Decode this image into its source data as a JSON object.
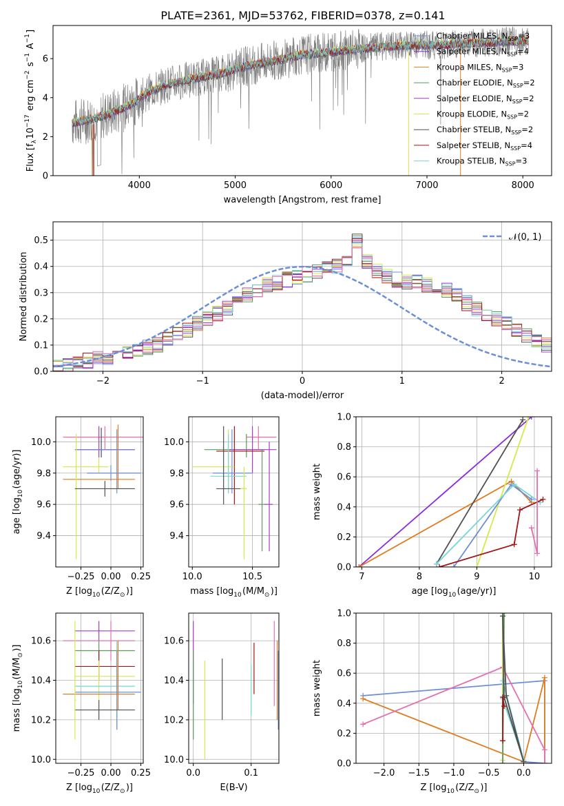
{
  "figure": {
    "title": "PLATE=2361, MJD=53762, FIBERID=0378, z=0.141"
  },
  "colors": {
    "data": "#808080",
    "series": [
      "#6a8fd8",
      "#8a2be2",
      "#e07b1f",
      "#5a9a5a",
      "#a63ac2",
      "#d6e84a",
      "#505050",
      "#a01515",
      "#76d6d6",
      "#e36fb0"
    ]
  },
  "chart_data": [
    {
      "id": "spectrum",
      "type": "line",
      "xlabel": "wavelength [Angstrom, rest frame]",
      "ylabel": "Flux [f$_\\lambda$10$^{-17}$ erg cm$^{-2}$ s$^{-1}$ A$^{-1}$]",
      "xlim": [
        3100,
        8300
      ],
      "ylim": [
        0,
        7.7
      ],
      "xticks": [
        4000,
        5000,
        6000,
        7000,
        8000
      ],
      "yticks": [
        0,
        2,
        4,
        6
      ],
      "grid": false,
      "legend_position": "upper-right",
      "continuum": {
        "x": [
          3300,
          3500,
          3700,
          3900,
          4100,
          4300,
          4500,
          4700,
          4900,
          5100,
          5300,
          5500,
          5700,
          5900,
          6100,
          6300,
          6500,
          6700,
          6900,
          7100,
          7300,
          7500,
          7700,
          7900,
          8050
        ],
        "y": [
          2.7,
          2.9,
          3.2,
          3.6,
          4.3,
          4.7,
          4.9,
          5.1,
          5.3,
          5.6,
          5.8,
          6.0,
          6.2,
          6.3,
          6.4,
          6.5,
          6.6,
          6.65,
          6.7,
          6.7,
          6.75,
          6.8,
          6.85,
          6.9,
          6.9
        ]
      },
      "legend": [
        {
          "label": "Chabrier MILES, N",
          "sub": "SSP",
          "tail": "=3",
          "color": "#6a8fd8"
        },
        {
          "label": "Salpeter MILES, N",
          "sub": "SSP",
          "tail": "=4",
          "color": "#8a2be2"
        },
        {
          "label": "Kroupa MILES, N",
          "sub": "SSP",
          "tail": "=3",
          "color": "#e07b1f"
        },
        {
          "label": "Chabrier ELODIE, N",
          "sub": "SSP",
          "tail": "=2",
          "color": "#5a9a5a"
        },
        {
          "label": "Salpeter ELODIE, N",
          "sub": "SSP",
          "tail": "=2",
          "color": "#a63ac2"
        },
        {
          "label": "Kroupa ELODIE, N",
          "sub": "SSP",
          "tail": "=2",
          "color": "#d6e84a"
        },
        {
          "label": "Chabrier STELIB, N",
          "sub": "SSP",
          "tail": "=2",
          "color": "#505050"
        },
        {
          "label": "Salpeter STELIB, N",
          "sub": "SSP",
          "tail": "=4",
          "color": "#a01515"
        },
        {
          "label": "Kroupa STELIB, N",
          "sub": "SSP",
          "tail": "=3",
          "color": "#76d6d6"
        }
      ]
    },
    {
      "id": "residuals",
      "type": "histogram",
      "xlabel": "(data-model)/error",
      "ylabel": "Normed distribution",
      "xlim": [
        -2.5,
        2.5
      ],
      "ylim": [
        0,
        0.57
      ],
      "xticks": [
        -2,
        -1,
        0,
        1,
        2
      ],
      "yticks": [
        0.0,
        0.1,
        0.2,
        0.3,
        0.4,
        0.5
      ],
      "grid": true,
      "legend": [
        {
          "label": "𝒩(0, 1)",
          "color": "#6a8fd8",
          "style": "dashed"
        }
      ],
      "legend_position": "upper-right",
      "bin_width": 0.1,
      "base_values": [
        0.02,
        0.025,
        0.03,
        0.04,
        0.05,
        0.055,
        0.06,
        0.07,
        0.08,
        0.09,
        0.1,
        0.12,
        0.14,
        0.16,
        0.18,
        0.2,
        0.22,
        0.24,
        0.27,
        0.29,
        0.31,
        0.33,
        0.34,
        0.35,
        0.36,
        0.37,
        0.38,
        0.39,
        0.4,
        0.41,
        0.5,
        0.42,
        0.38,
        0.36,
        0.35,
        0.34,
        0.34,
        0.33,
        0.32,
        0.31,
        0.29,
        0.26,
        0.24,
        0.22,
        0.2,
        0.18,
        0.16,
        0.14,
        0.12,
        0.1,
        0.09,
        0.08,
        0.07,
        0.06,
        0.05,
        0.045,
        0.04,
        0.035,
        0.03,
        0.03
      ]
    },
    {
      "id": "age-vs-z",
      "type": "errorbar",
      "xlabel": "Z [log$_{10}$(Z/Z$_\\odot$)]",
      "ylabel": "age  [log$_{10}$(age/yr)]",
      "xlim": [
        -0.46,
        0.27
      ],
      "ylim": [
        9.2,
        10.16
      ],
      "xticks": [
        -0.25,
        0.0,
        0.25
      ],
      "xticklabels": [
        "−0.25",
        "0.00",
        "0.25"
      ],
      "yticks": [
        9.4,
        9.6,
        9.8,
        10.0
      ],
      "grid": true,
      "points": [
        {
          "x": -0.05,
          "y": 10.03,
          "x0": -0.4,
          "x1": 0.27,
          "y0": 9.95,
          "y1": 10.1,
          "color": "#e36fb0"
        },
        {
          "x": -0.08,
          "y": 9.95,
          "x0": -0.3,
          "x1": 0.2,
          "y0": 9.9,
          "y1": 10.09,
          "color": "#505050"
        },
        {
          "x": -0.1,
          "y": 9.95,
          "x0": -0.3,
          "x1": 0.2,
          "y0": 9.9,
          "y1": 10.1,
          "color": "#a63ac2"
        },
        {
          "x": 0.05,
          "y": 9.95,
          "x0": -0.3,
          "x1": 0.2,
          "y0": 9.67,
          "y1": 10.08,
          "color": "#6a8fd8"
        },
        {
          "x": 0.06,
          "y": 9.76,
          "x0": -0.4,
          "x1": 0.2,
          "y0": 9.7,
          "y1": 10.11,
          "color": "#e07b1f"
        },
        {
          "x": -0.1,
          "y": 9.84,
          "x0": -0.4,
          "x1": -0.02,
          "y0": 9.8,
          "y1": 9.9,
          "color": "#d6e84a"
        },
        {
          "x": 0.0,
          "y": 9.8,
          "x0": -0.2,
          "x1": 0.25,
          "y0": 9.75,
          "y1": 9.85,
          "color": "#6a8fd8"
        },
        {
          "x": -0.29,
          "y": 9.7,
          "x0": -0.3,
          "x1": 0.2,
          "y0": 9.25,
          "y1": 10.05,
          "color": "#d6e84a"
        },
        {
          "x": -0.05,
          "y": 9.7,
          "x0": -0.3,
          "x1": 0.2,
          "y0": 9.65,
          "y1": 9.75,
          "color": "#505050"
        }
      ]
    },
    {
      "id": "age-vs-mass",
      "type": "errorbar",
      "xlabel": "mass [log$_{10}$(M/M$_\\odot$)]",
      "xlim": [
        9.97,
        10.72
      ],
      "ylim": [
        9.2,
        10.16
      ],
      "xticks": [
        10.0,
        10.5
      ],
      "yticks": [
        9.4,
        9.6,
        9.8,
        10.0
      ],
      "grid": true,
      "points": [
        {
          "x": 10.55,
          "y": 10.03,
          "x0": 10.45,
          "x1": 10.7,
          "y0": 9.95,
          "y1": 10.1,
          "color": "#e36fb0"
        },
        {
          "x": 10.45,
          "y": 9.95,
          "x0": 10.1,
          "x1": 10.6,
          "y0": 9.9,
          "y1": 10.05,
          "color": "#5a9a5a"
        },
        {
          "x": 10.5,
          "y": 9.95,
          "x0": 10.3,
          "x1": 10.7,
          "y0": 9.8,
          "y1": 10.1,
          "color": "#a63ac2"
        },
        {
          "x": 10.35,
          "y": 9.94,
          "x0": 10.2,
          "x1": 10.6,
          "y0": 9.6,
          "y1": 10.1,
          "color": "#a01515"
        },
        {
          "x": 10.33,
          "y": 9.8,
          "x0": 10.17,
          "x1": 10.5,
          "y0": 9.67,
          "y1": 10.08,
          "color": "#6a8fd8"
        },
        {
          "x": 10.3,
          "y": 9.84,
          "x0": 10.0,
          "x1": 10.35,
          "y0": 9.67,
          "y1": 10.08,
          "color": "#d6e84a"
        },
        {
          "x": 10.3,
          "y": 9.78,
          "x0": 10.15,
          "x1": 10.45,
          "y0": 9.67,
          "y1": 10.05,
          "color": "#76d6d6"
        },
        {
          "x": 10.26,
          "y": 9.7,
          "x0": 10.2,
          "x1": 10.45,
          "y0": 9.6,
          "y1": 10.1,
          "color": "#505050"
        },
        {
          "x": 10.58,
          "y": 9.6,
          "x0": 10.55,
          "x1": 10.6,
          "y0": 9.3,
          "y1": 9.95,
          "color": "#5a9a5a"
        },
        {
          "x": 10.43,
          "y": 9.7,
          "x0": 10.4,
          "x1": 10.45,
          "y0": 9.25,
          "y1": 9.84,
          "color": "#d6e84a"
        },
        {
          "x": 10.64,
          "y": 9.6,
          "x0": 10.6,
          "x1": 10.67,
          "y0": 9.3,
          "y1": 10.0,
          "color": "#a63ac2"
        }
      ]
    },
    {
      "id": "weight-vs-age",
      "type": "line",
      "xlabel": "age  [log$_{10}$(age/yr)]",
      "ylabel": "mass weight",
      "xlim": [
        6.9,
        10.3
      ],
      "ylim": [
        0,
        1.0
      ],
      "xticks": [
        7,
        8,
        9,
        10
      ],
      "yticks": [
        0.0,
        0.2,
        0.4,
        0.6,
        0.8,
        1.0
      ],
      "grid": true,
      "series": [
        {
          "color": "#8a2be2",
          "x": [
            6.95,
            9.95
          ],
          "y": [
            0.0,
            1.0
          ]
        },
        {
          "color": "#e07b1f",
          "x": [
            6.95,
            9.6,
            9.95
          ],
          "y": [
            0.0,
            0.57,
            0.43
          ]
        },
        {
          "color": "#505050",
          "x": [
            8.3,
            9.8
          ],
          "y": [
            0.02,
            0.98
          ]
        },
        {
          "color": "#d6e84a",
          "x": [
            9.0,
            9.9
          ],
          "y": [
            0.0,
            1.0
          ]
        },
        {
          "color": "#6a8fd8",
          "x": [
            8.6,
            9.6,
            9.95
          ],
          "y": [
            0.0,
            0.55,
            0.45
          ]
        },
        {
          "color": "#76d6d6",
          "x": [
            8.3,
            9.65,
            10.1
          ],
          "y": [
            0.02,
            0.55,
            0.43
          ]
        },
        {
          "color": "#a01515",
          "x": [
            8.35,
            9.65,
            9.75,
            10.15
          ],
          "y": [
            0.0,
            0.15,
            0.38,
            0.45
          ]
        },
        {
          "color": "#e36fb0",
          "x": [
            9.95,
            10.05,
            10.05
          ],
          "y": [
            0.26,
            0.09,
            0.64
          ]
        }
      ]
    },
    {
      "id": "mass-vs-z",
      "type": "errorbar",
      "xlabel": "Z [log$_{10}$(Z/Z$_\\odot$)]",
      "ylabel": "mass [log$_{10}$(M/M$_\\odot$)]",
      "xlim": [
        -0.46,
        0.27
      ],
      "ylim": [
        9.98,
        10.74
      ],
      "xticks": [
        -0.25,
        0.0,
        0.25
      ],
      "xticklabels": [
        "−0.25",
        "0.00",
        "0.25"
      ],
      "yticks": [
        10.0,
        10.2,
        10.4,
        10.6
      ],
      "grid": true,
      "points": [
        {
          "x": -0.1,
          "y": 10.65,
          "x0": -0.3,
          "x1": 0.2,
          "y0": 10.6,
          "y1": 10.7,
          "color": "#a63ac2"
        },
        {
          "x": 0.0,
          "y": 10.6,
          "x0": -0.4,
          "x1": 0.2,
          "y0": 10.5,
          "y1": 10.7,
          "color": "#e36fb0"
        },
        {
          "x": -0.1,
          "y": 10.55,
          "x0": -0.3,
          "x1": 0.2,
          "y0": 10.5,
          "y1": 10.6,
          "color": "#5a9a5a"
        },
        {
          "x": -0.1,
          "y": 10.47,
          "x0": -0.3,
          "x1": 0.2,
          "y0": 10.4,
          "y1": 10.55,
          "color": "#a01515"
        },
        {
          "x": -0.1,
          "y": 10.42,
          "x0": -0.3,
          "x1": 0.2,
          "y0": 10.3,
          "y1": 10.5,
          "color": "#d6e84a"
        },
        {
          "x": 0.05,
          "y": 10.37,
          "x0": -0.3,
          "x1": 0.2,
          "y0": 10.15,
          "y1": 10.6,
          "color": "#76d6d6"
        },
        {
          "x": 0.05,
          "y": 10.34,
          "x0": -0.3,
          "x1": 0.25,
          "y0": 10.15,
          "y1": 10.55,
          "color": "#6a8fd8"
        },
        {
          "x": 0.06,
          "y": 10.33,
          "x0": -0.4,
          "x1": 0.2,
          "y0": 10.25,
          "y1": 10.6,
          "color": "#e07b1f"
        },
        {
          "x": -0.1,
          "y": 10.25,
          "x0": -0.3,
          "x1": 0.2,
          "y0": 10.2,
          "y1": 10.3,
          "color": "#505050"
        },
        {
          "x": -0.3,
          "y": 10.3,
          "x0": -0.3,
          "x1": -0.29,
          "y0": 10.1,
          "y1": 10.7,
          "color": "#d6e84a"
        }
      ]
    },
    {
      "id": "mass-vs-ebv",
      "type": "errorbar",
      "xlabel": "E(B-V)",
      "xlim": [
        -0.008,
        0.148
      ],
      "ylim": [
        9.98,
        10.74
      ],
      "xticks": [
        0.0,
        0.1
      ],
      "yticks": [
        10.0,
        10.2,
        10.4,
        10.6
      ],
      "grid": true,
      "points": [
        {
          "x": 0.0,
          "y": 10.4,
          "x0": 0.0,
          "x1": 0.0,
          "y0": 10.28,
          "y1": 10.7,
          "color": "#a63ac2"
        },
        {
          "x": 0.0,
          "y": 10.2,
          "x0": 0.0,
          "x1": 0.0,
          "y0": 10.1,
          "y1": 10.55,
          "color": "#5a9a5a"
        },
        {
          "x": 0.02,
          "y": 10.3,
          "x0": 0.02,
          "x1": 0.02,
          "y0": 10.0,
          "y1": 10.5,
          "color": "#d6e84a"
        },
        {
          "x": 0.05,
          "y": 10.35,
          "x0": 0.05,
          "x1": 0.05,
          "y0": 10.2,
          "y1": 10.51,
          "color": "#505050"
        },
        {
          "x": 0.1,
          "y": 10.35,
          "x0": 0.1,
          "x1": 0.1,
          "y0": 10.22,
          "y1": 10.48,
          "color": "#76d6d6"
        },
        {
          "x": 0.105,
          "y": 10.46,
          "x0": 0.105,
          "x1": 0.105,
          "y0": 10.33,
          "y1": 10.59,
          "color": "#a01515"
        },
        {
          "x": 0.14,
          "y": 10.45,
          "x0": 0.14,
          "x1": 0.14,
          "y0": 10.27,
          "y1": 10.7,
          "color": "#e36fb0"
        },
        {
          "x": 0.145,
          "y": 10.4,
          "x0": 0.145,
          "x1": 0.145,
          "y0": 10.2,
          "y1": 10.6,
          "color": "#e07b1f"
        },
        {
          "x": 0.147,
          "y": 10.35,
          "x0": 0.147,
          "x1": 0.147,
          "y0": 10.15,
          "y1": 10.55,
          "color": "#6a8fd8"
        }
      ]
    },
    {
      "id": "weight-vs-z",
      "type": "line",
      "xlabel": "Z [log$_{10}$(Z/Z$_\\odot$)]",
      "ylabel": "mass weight",
      "xlim": [
        -2.4,
        0.4
      ],
      "ylim": [
        0,
        1.0
      ],
      "xticks": [
        -2.0,
        -1.5,
        -1.0,
        -0.5,
        0.0
      ],
      "xticklabels": [
        "−2.0",
        "−1.5",
        "−1.0",
        "−0.5",
        "0.0"
      ],
      "yticks": [
        0.0,
        0.2,
        0.4,
        0.6,
        0.8,
        1.0
      ],
      "grid": true,
      "series": [
        {
          "color": "#6a8fd8",
          "x": [
            -2.3,
            0.3,
            0.3,
            0.0
          ],
          "y": [
            0.45,
            0.55,
            0.0,
            0.01
          ]
        },
        {
          "color": "#e07b1f",
          "x": [
            -2.3,
            0.0,
            0.3,
            0.3
          ],
          "y": [
            0.43,
            0.01,
            0.57,
            0.0
          ]
        },
        {
          "color": "#e36fb0",
          "x": [
            -2.3,
            -0.3,
            0.3,
            0.3
          ],
          "y": [
            0.26,
            0.64,
            0.09,
            0.0
          ]
        },
        {
          "color": "#a63ac2",
          "x": [
            -0.3,
            -0.3
          ],
          "y": [
            0.0,
            1.0
          ]
        },
        {
          "color": "#d6e84a",
          "x": [
            -0.3,
            -0.3
          ],
          "y": [
            0.02,
            1.0
          ]
        },
        {
          "color": "#76d6d6",
          "x": [
            -0.3,
            0.0,
            -0.3
          ],
          "y": [
            0.55,
            0.02,
            0.43
          ]
        },
        {
          "color": "#5a9a5a",
          "x": [
            -0.3,
            -0.28
          ],
          "y": [
            0.0,
            1.0
          ]
        },
        {
          "color": "#505050",
          "x": [
            -0.3,
            -0.25,
            0.0,
            -0.28,
            -0.3
          ],
          "y": [
            0.98,
            0.45,
            0.01,
            0.44,
            0.98
          ]
        },
        {
          "color": "#a01515",
          "x": [
            -0.3,
            -0.3,
            -0.28
          ],
          "y": [
            0.15,
            0.44,
            0.38
          ]
        }
      ]
    }
  ]
}
